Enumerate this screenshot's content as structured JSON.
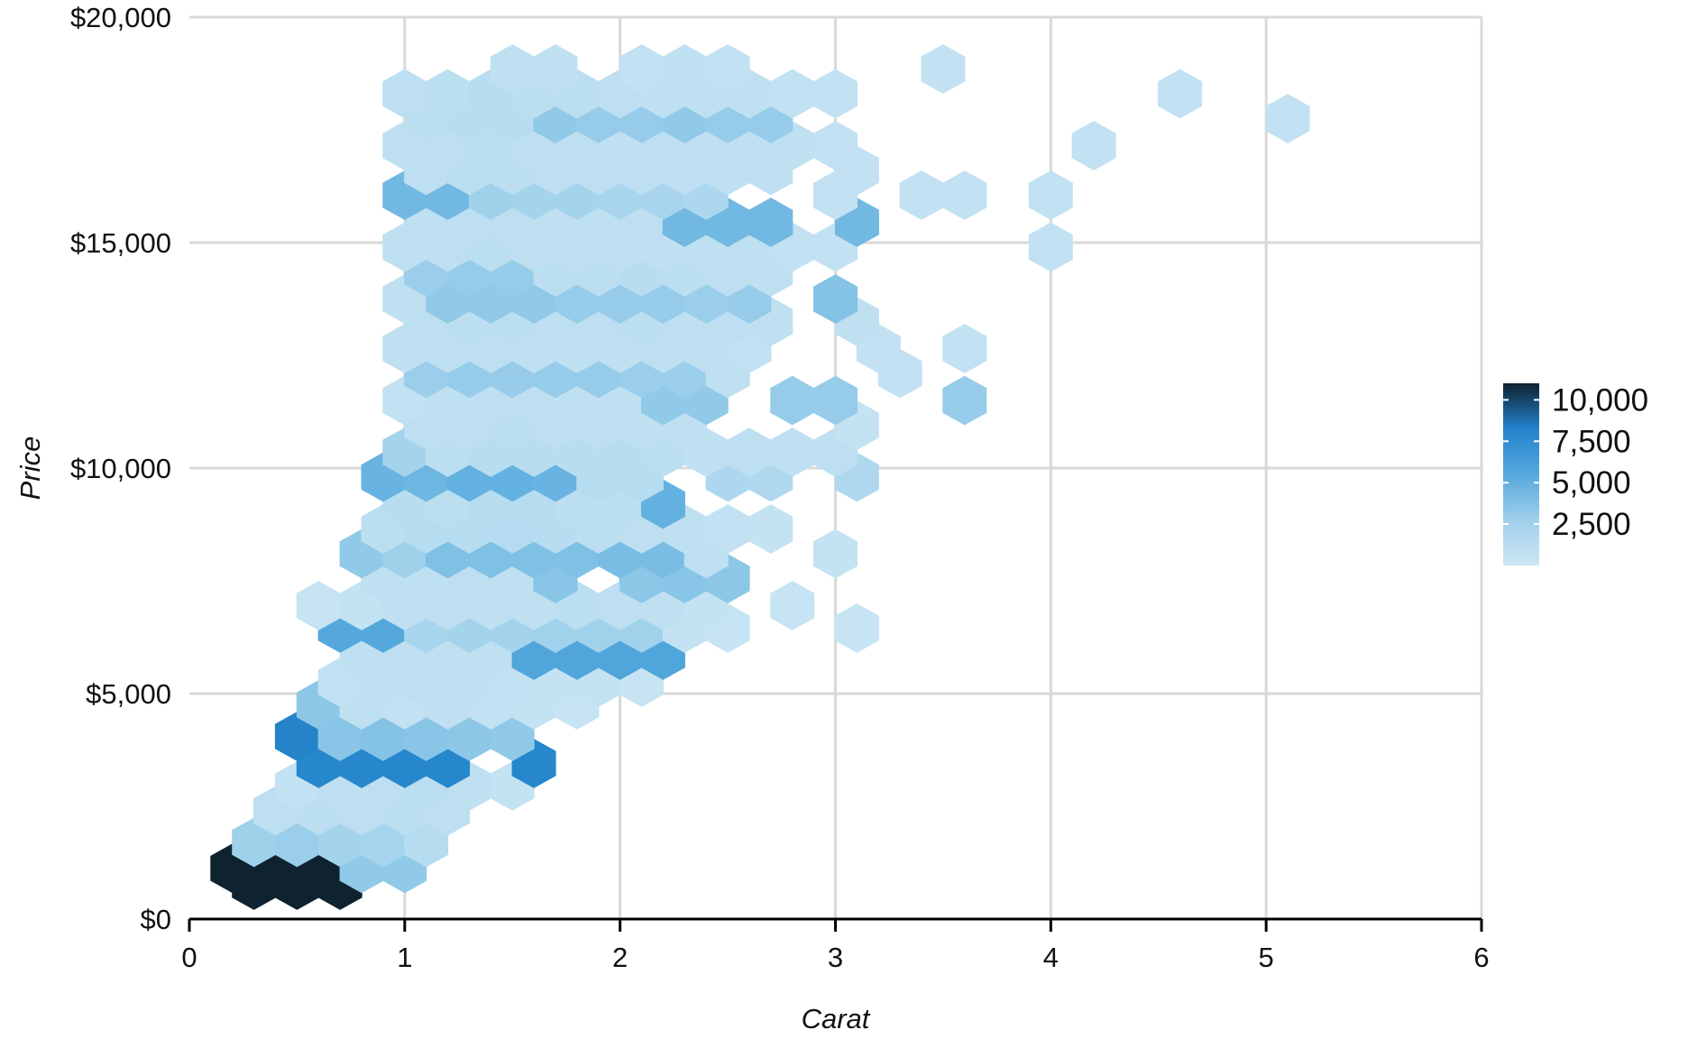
{
  "chart_data": {
    "type": "hexbin",
    "title": "",
    "xlabel": "Carat",
    "ylabel": "Price",
    "xlim": [
      0,
      6
    ],
    "ylim": [
      0,
      20000
    ],
    "x_ticks": [
      0,
      1,
      2,
      3,
      4,
      5,
      6
    ],
    "x_tick_labels": [
      "0",
      "1",
      "2",
      "3",
      "4",
      "5",
      "6"
    ],
    "y_ticks": [
      0,
      5000,
      10000,
      15000,
      20000
    ],
    "y_tick_labels": [
      "$0",
      "$5,000",
      "$10,000",
      "$15,000",
      "$20,000"
    ],
    "grid": true,
    "legend": {
      "placement": "right",
      "title": "",
      "ticks": [
        2500,
        5000,
        7500,
        10000
      ],
      "tick_labels": [
        "2,500",
        "5,000",
        "7,500",
        "10,000"
      ],
      "min": 0,
      "max": 11000
    },
    "colors": {
      "low": "#c8e4f2",
      "mid": "#2b8ad0",
      "high": "#0e2230"
    },
    "hex_rows": [
      {
        "y": 750,
        "x": [
          0.3,
          0.5,
          0.7
        ],
        "counts": [
          10500,
          10500,
          10500
        ]
      },
      {
        "y": 1125,
        "x": [
          0.2,
          0.4,
          0.6,
          0.8,
          1.0
        ],
        "counts": [
          10500,
          10500,
          10500,
          1300,
          1300
        ]
      },
      {
        "y": 1700,
        "x": [
          0.3,
          0.5,
          0.7,
          0.9,
          1.1
        ],
        "counts": [
          1000,
          1100,
          900,
          850,
          500
        ]
      },
      {
        "y": 2400,
        "x": [
          0.4,
          0.6,
          0.8,
          1.0,
          1.2
        ],
        "counts": [
          350,
          400,
          350,
          400,
          350
        ]
      },
      {
        "y": 2950,
        "x": [
          0.5,
          0.7,
          0.9,
          1.1,
          1.3,
          1.5
        ],
        "counts": [
          250,
          300,
          350,
          400,
          300,
          200
        ]
      },
      {
        "y": 3450,
        "x": [
          0.6,
          0.8,
          1.0,
          1.2,
          1.6
        ],
        "counts": [
          5000,
          5000,
          5000,
          5000,
          5000
        ]
      },
      {
        "y": 4050,
        "x": [
          0.5,
          0.7,
          0.9,
          1.1,
          1.3,
          1.5
        ],
        "counts": [
          5200,
          1500,
          1600,
          1500,
          1400,
          1300
        ]
      },
      {
        "y": 4750,
        "x": [
          0.6,
          0.8,
          1.0,
          1.2,
          1.4,
          1.6,
          1.8
        ],
        "counts": [
          1400,
          300,
          250,
          300,
          250,
          200,
          150
        ]
      },
      {
        "y": 5250,
        "x": [
          0.7,
          0.9,
          1.1,
          1.3,
          1.5,
          1.7,
          1.9,
          2.1
        ],
        "counts": [
          250,
          300,
          350,
          300,
          250,
          200,
          200,
          150
        ]
      },
      {
        "y": 5850,
        "x": [
          0.8,
          1.0,
          1.2,
          1.4,
          1.6,
          1.8,
          2.0,
          2.2
        ],
        "counts": [
          300,
          350,
          300,
          300,
          3000,
          3000,
          3000,
          3000
        ]
      },
      {
        "y": 6450,
        "x": [
          0.7,
          0.9,
          1.1,
          1.3,
          1.5,
          1.7,
          1.9,
          2.1,
          2.3,
          2.5,
          3.1
        ],
        "counts": [
          2800,
          2800,
          800,
          900,
          900,
          950,
          950,
          950,
          200,
          150,
          150
        ]
      },
      {
        "y": 6950,
        "x": [
          0.6,
          0.8,
          1.0,
          1.2,
          1.4,
          1.6,
          1.8,
          2.0,
          2.2,
          2.4,
          2.8
        ],
        "counts": [
          150,
          200,
          300,
          350,
          300,
          300,
          400,
          350,
          300,
          200,
          150
        ]
      },
      {
        "y": 7550,
        "x": [
          0.9,
          1.1,
          1.3,
          1.5,
          1.7,
          2.1,
          2.3,
          2.5
        ],
        "counts": [
          300,
          300,
          350,
          300,
          1500,
          1400,
          1500,
          1400
        ]
      },
      {
        "y": 8100,
        "x": [
          0.8,
          1.0,
          1.2,
          1.4,
          1.6,
          1.8,
          2.0,
          2.2,
          2.4,
          3.0
        ],
        "counts": [
          1300,
          1000,
          1700,
          1700,
          1700,
          1700,
          1800,
          1800,
          300,
          200
        ]
      },
      {
        "y": 8650,
        "x": [
          0.9,
          1.1,
          1.3,
          1.5,
          1.7,
          1.9,
          2.1,
          2.3,
          2.5,
          2.7
        ],
        "counts": [
          400,
          500,
          500,
          550,
          450,
          400,
          350,
          300,
          250,
          200
        ]
      },
      {
        "y": 9200,
        "x": [
          1.0,
          1.2,
          1.4,
          1.6,
          1.8,
          2.0,
          2.2
        ],
        "counts": [
          450,
          400,
          500,
          500,
          400,
          400,
          2300
        ]
      },
      {
        "y": 9800,
        "x": [
          0.9,
          1.1,
          1.3,
          1.5,
          1.7,
          1.9,
          2.1,
          2.5,
          2.7,
          3.1
        ],
        "counts": [
          2200,
          2100,
          2300,
          2300,
          2200,
          500,
          500,
          700,
          650,
          650
        ]
      },
      {
        "y": 10350,
        "x": [
          1.0,
          1.2,
          1.4,
          1.6,
          1.8,
          2.0,
          2.2,
          2.4,
          2.6,
          2.8,
          3.0
        ],
        "counts": [
          900,
          400,
          450,
          450,
          450,
          450,
          400,
          300,
          350,
          300,
          350
        ]
      },
      {
        "y": 10950,
        "x": [
          1.1,
          1.3,
          1.5,
          1.7,
          1.9,
          2.1,
          2.3,
          3.1
        ],
        "counts": [
          350,
          350,
          400,
          350,
          350,
          300,
          300,
          200
        ]
      },
      {
        "y": 11500,
        "x": [
          1.0,
          1.2,
          1.4,
          1.6,
          1.8,
          2.0,
          2.2,
          2.4,
          2.8,
          3.0,
          3.6
        ],
        "counts": [
          250,
          300,
          350,
          350,
          300,
          300,
          1300,
          1300,
          1200,
          1200,
          1200
        ]
      },
      {
        "y": 12100,
        "x": [
          1.1,
          1.3,
          1.5,
          1.7,
          1.9,
          2.1,
          2.3,
          2.5,
          3.3
        ],
        "counts": [
          1100,
          1200,
          1200,
          1200,
          1200,
          1100,
          1100,
          300,
          250
        ]
      },
      {
        "y": 12650,
        "x": [
          1.0,
          1.2,
          1.4,
          1.6,
          1.8,
          2.0,
          2.2,
          2.4,
          2.6,
          3.2,
          3.6
        ],
        "counts": [
          300,
          350,
          350,
          300,
          300,
          300,
          350,
          300,
          250,
          250,
          250
        ]
      },
      {
        "y": 13250,
        "x": [
          1.1,
          1.3,
          1.5,
          1.7,
          1.9,
          2.1,
          2.3,
          2.5,
          2.7,
          3.1
        ],
        "counts": [
          350,
          400,
          400,
          350,
          350,
          400,
          350,
          350,
          300,
          300
        ]
      },
      {
        "y": 13750,
        "x": [
          1.0,
          1.2,
          1.4,
          1.6,
          1.8,
          2.0,
          2.2,
          2.4,
          2.6,
          3.0
        ],
        "counts": [
          300,
          1300,
          1300,
          1300,
          1200,
          1200,
          1200,
          1100,
          1200,
          1600
        ]
      },
      {
        "y": 14350,
        "x": [
          1.1,
          1.3,
          1.5,
          1.7,
          1.9,
          2.1,
          2.3,
          2.5,
          2.7
        ],
        "counts": [
          1100,
          1200,
          1200,
          400,
          400,
          450,
          400,
          350,
          300
        ]
      },
      {
        "y": 14900,
        "x": [
          1.0,
          1.2,
          1.4,
          1.6,
          1.8,
          2.0,
          2.2,
          2.4,
          2.6,
          2.8,
          3.0,
          4.0
        ],
        "counts": [
          300,
          350,
          400,
          350,
          350,
          350,
          300,
          300,
          300,
          250,
          250,
          250
        ]
      },
      {
        "y": 15450,
        "x": [
          1.1,
          1.3,
          1.5,
          1.7,
          1.9,
          2.1,
          2.3,
          2.5,
          2.7,
          3.1
        ],
        "counts": [
          300,
          350,
          350,
          300,
          300,
          350,
          2000,
          2000,
          2000,
          2000
        ]
      },
      {
        "y": 16050,
        "x": [
          1.0,
          1.2,
          1.4,
          1.6,
          1.8,
          2.0,
          2.2,
          2.4,
          3.0,
          3.4,
          3.6,
          4.0
        ],
        "counts": [
          2000,
          2000,
          1000,
          900,
          900,
          800,
          800,
          700,
          250,
          250,
          250,
          250
        ]
      },
      {
        "y": 16600,
        "x": [
          1.1,
          1.3,
          1.5,
          1.7,
          1.9,
          2.1,
          2.3,
          2.5,
          2.7,
          3.1
        ],
        "counts": [
          350,
          400,
          400,
          350,
          350,
          350,
          350,
          300,
          300,
          250
        ]
      },
      {
        "y": 17150,
        "x": [
          1.0,
          1.2,
          1.4,
          1.6,
          1.8,
          2.0,
          2.2,
          2.4,
          2.6,
          2.8,
          3.0,
          4.2
        ],
        "counts": [
          300,
          350,
          400,
          350,
          350,
          300,
          350,
          300,
          300,
          300,
          250,
          250
        ]
      },
      {
        "y": 17750,
        "x": [
          1.1,
          1.3,
          1.5,
          1.7,
          1.9,
          2.1,
          2.3,
          2.5,
          2.7,
          5.1
        ],
        "counts": [
          400,
          450,
          450,
          1300,
          1200,
          1200,
          1300,
          1200,
          1200,
          250
        ]
      },
      {
        "y": 18300,
        "x": [
          1.0,
          1.2,
          1.4,
          1.6,
          1.8,
          2.0,
          2.2,
          2.4,
          2.6,
          2.8,
          3.0,
          4.6
        ],
        "counts": [
          350,
          400,
          450,
          400,
          400,
          350,
          300,
          300,
          300,
          250,
          250,
          250
        ]
      },
      {
        "y": 18850,
        "x": [
          1.5,
          1.7,
          2.1,
          2.3,
          2.5,
          3.5
        ],
        "counts": [
          300,
          300,
          250,
          300,
          250,
          250
        ]
      }
    ]
  }
}
